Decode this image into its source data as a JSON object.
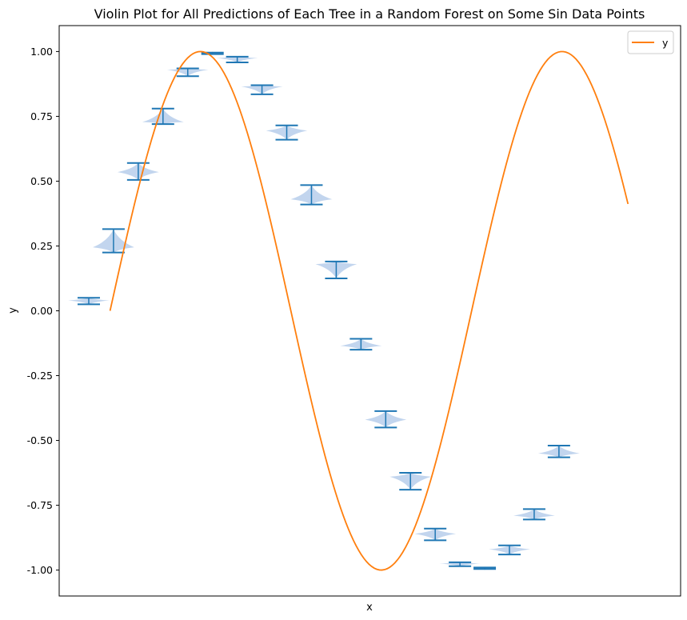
{
  "chart_data": {
    "type": "violin",
    "title": "Violin Plot for All Predictions of Each Tree in a Random Forest on Some Sin Data Points",
    "xlabel": "x",
    "ylabel": "y",
    "xlim": [
      -0.884,
      9.914
    ],
    "ylim": [
      -1.1,
      1.1
    ],
    "yticks": [
      1.0,
      0.75,
      0.5,
      0.25,
      0.0,
      -0.25,
      -0.5,
      -0.75,
      -1.0
    ],
    "ytick_labels": [
      "1.00",
      "0.75",
      "0.50",
      "0.25",
      "0.00",
      "-0.25",
      "-0.50",
      "-0.75",
      "-1.00"
    ],
    "grid": false,
    "legend": {
      "location": "top-right",
      "entries": [
        {
          "label": "y",
          "color": "#ff7f0e"
        }
      ]
    },
    "line": {
      "name": "y",
      "color": "#ff7f0e",
      "function": "sin",
      "x_range": [
        0,
        9
      ],
      "samples": 200
    },
    "violins": {
      "color": "#1f77b4",
      "fill": "#aec7e8",
      "items": [
        {
          "x": -0.37,
          "min": 0.025,
          "max": 0.05,
          "center": 0.04,
          "half_width": 0.36
        },
        {
          "x": 0.06,
          "min": 0.225,
          "max": 0.315,
          "center": 0.245,
          "half_width": 0.36
        },
        {
          "x": 0.49,
          "min": 0.505,
          "max": 0.57,
          "center": 0.535,
          "half_width": 0.36
        },
        {
          "x": 0.92,
          "min": 0.72,
          "max": 0.78,
          "center": 0.728,
          "half_width": 0.36
        },
        {
          "x": 1.35,
          "min": 0.905,
          "max": 0.935,
          "center": 0.93,
          "half_width": 0.36
        },
        {
          "x": 1.78,
          "min": 0.99,
          "max": 0.996,
          "center": 0.993,
          "half_width": 0.2
        },
        {
          "x": 2.21,
          "min": 0.958,
          "max": 0.98,
          "center": 0.975,
          "half_width": 0.36
        },
        {
          "x": 2.64,
          "min": 0.835,
          "max": 0.87,
          "center": 0.865,
          "half_width": 0.36
        },
        {
          "x": 3.07,
          "min": 0.66,
          "max": 0.715,
          "center": 0.695,
          "half_width": 0.36
        },
        {
          "x": 3.5,
          "min": 0.41,
          "max": 0.485,
          "center": 0.43,
          "half_width": 0.36
        },
        {
          "x": 3.93,
          "min": 0.125,
          "max": 0.19,
          "center": 0.18,
          "half_width": 0.36
        },
        {
          "x": 4.36,
          "min": -0.15,
          "max": -0.108,
          "center": -0.135,
          "half_width": 0.36
        },
        {
          "x": 4.79,
          "min": -0.45,
          "max": -0.387,
          "center": -0.42,
          "half_width": 0.36
        },
        {
          "x": 5.22,
          "min": -0.69,
          "max": -0.625,
          "center": -0.64,
          "half_width": 0.36
        },
        {
          "x": 5.65,
          "min": -0.885,
          "max": -0.84,
          "center": -0.86,
          "half_width": 0.36
        },
        {
          "x": 6.08,
          "min": -0.985,
          "max": -0.97,
          "center": -0.975,
          "half_width": 0.36
        },
        {
          "x": 6.51,
          "min": -0.996,
          "max": -0.99,
          "center": -0.993,
          "half_width": 0.2
        },
        {
          "x": 6.94,
          "min": -0.94,
          "max": -0.905,
          "center": -0.92,
          "half_width": 0.36
        },
        {
          "x": 7.37,
          "min": -0.805,
          "max": -0.765,
          "center": -0.79,
          "half_width": 0.36
        },
        {
          "x": 7.8,
          "min": -0.565,
          "max": -0.52,
          "center": -0.55,
          "half_width": 0.36
        }
      ]
    }
  }
}
